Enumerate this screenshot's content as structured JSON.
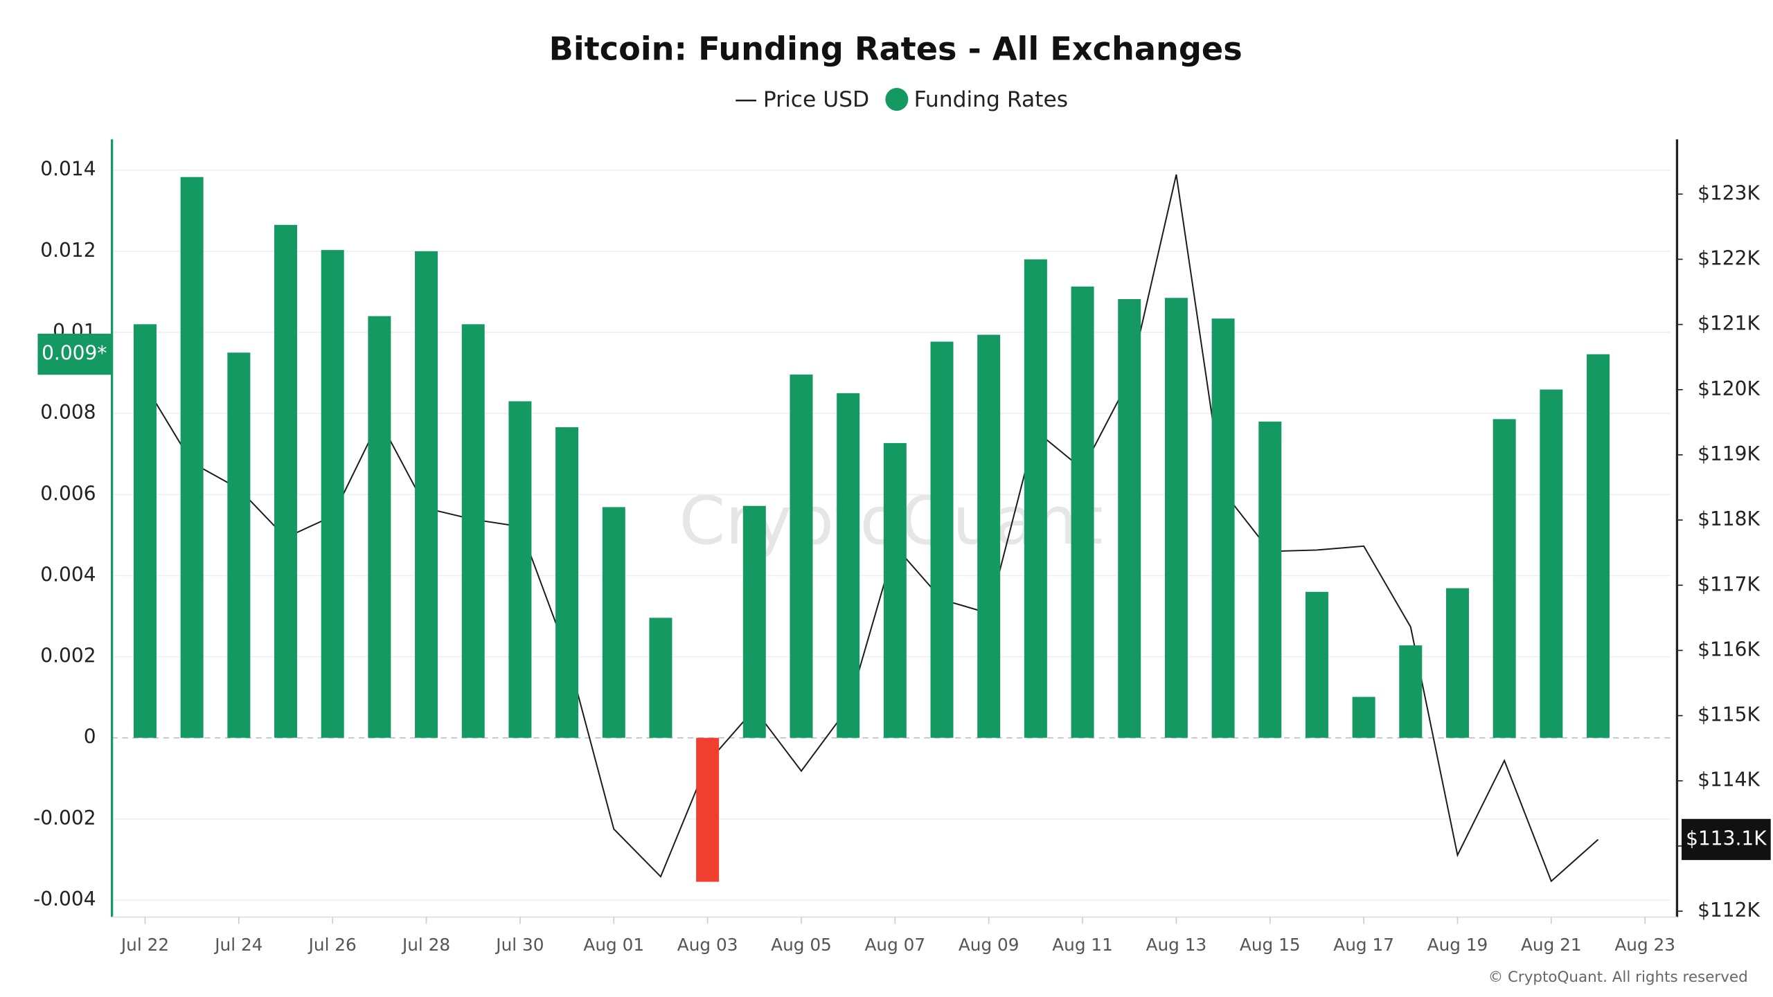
{
  "chart_data": {
    "type": "bar_line",
    "title": "Bitcoin: Funding Rates - All Exchanges",
    "watermark": "CryptoQuant",
    "credit": "© CryptoQuant. All rights reserved",
    "categories": [
      "Jul 22",
      null,
      "Jul 24",
      null,
      "Jul 26",
      null,
      "Jul 28",
      null,
      "Jul 30",
      null,
      "Aug 01",
      null,
      "Aug 03",
      null,
      "Aug 05",
      null,
      "Aug 07",
      null,
      "Aug 09",
      null,
      "Aug 11",
      null,
      "Aug 13",
      null,
      "Aug 15",
      null,
      "Aug 17",
      null,
      "Aug 19",
      null,
      "Aug 21",
      null,
      "Aug 23"
    ],
    "series": [
      {
        "name": "Price USD",
        "type": "line",
        "axis": "y2",
        "color": "#1a1a1a",
        "values": [
          120070,
          118880,
          118480,
          117730,
          118060,
          119530,
          118180,
          118010,
          117900,
          115960,
          113260,
          112530,
          114280,
          115100,
          114150,
          115120,
          117600,
          116780,
          116570,
          119370,
          118780,
          120160,
          123300,
          118440,
          117520,
          117540,
          117600,
          116360,
          112860,
          114310,
          112460,
          113100,
          null
        ],
        "last_label": "$113.1K"
      },
      {
        "name": "Funding Rates",
        "type": "bar",
        "color": "#149962",
        "negative_color": "#f03e2f",
        "values": [
          0.0102,
          0.01383,
          0.0095,
          0.01265,
          0.01203,
          0.0104,
          0.012,
          0.0102,
          0.0083,
          0.00766,
          0.00569,
          0.00296,
          -0.00355,
          0.00572,
          0.00896,
          0.0085,
          0.00727,
          0.00977,
          0.00994,
          0.0118,
          0.01113,
          0.01082,
          0.01085,
          0.01034,
          0.0078,
          0.0036,
          0.00101,
          0.00228,
          0.00369,
          0.00786,
          0.00859,
          0.00946,
          null
        ],
        "last_label": "0.009*"
      }
    ],
    "ylim": [
      -0.00442,
      0.01476
    ],
    "yticks": [
      -0.004,
      -0.002,
      0,
      0.002,
      0.004,
      0.006,
      0.008,
      0.01,
      0.012,
      0.014
    ],
    "y2lim": [
      111910,
      123840
    ],
    "y2ticks": [
      {
        "value": 112000,
        "label": "$112K"
      },
      {
        "value": 113000,
        "label": "$113K"
      },
      {
        "value": 114000,
        "label": "$114K"
      },
      {
        "value": 115000,
        "label": "$115K"
      },
      {
        "value": 116000,
        "label": "$116K"
      },
      {
        "value": 117000,
        "label": "$117K"
      },
      {
        "value": 118000,
        "label": "$118K"
      },
      {
        "value": 119000,
        "label": "$119K"
      },
      {
        "value": 120000,
        "label": "$120K"
      },
      {
        "value": 121000,
        "label": "$121K"
      },
      {
        "value": 122000,
        "label": "$122K"
      },
      {
        "value": 123000,
        "label": "$123K"
      }
    ],
    "grid": true
  }
}
